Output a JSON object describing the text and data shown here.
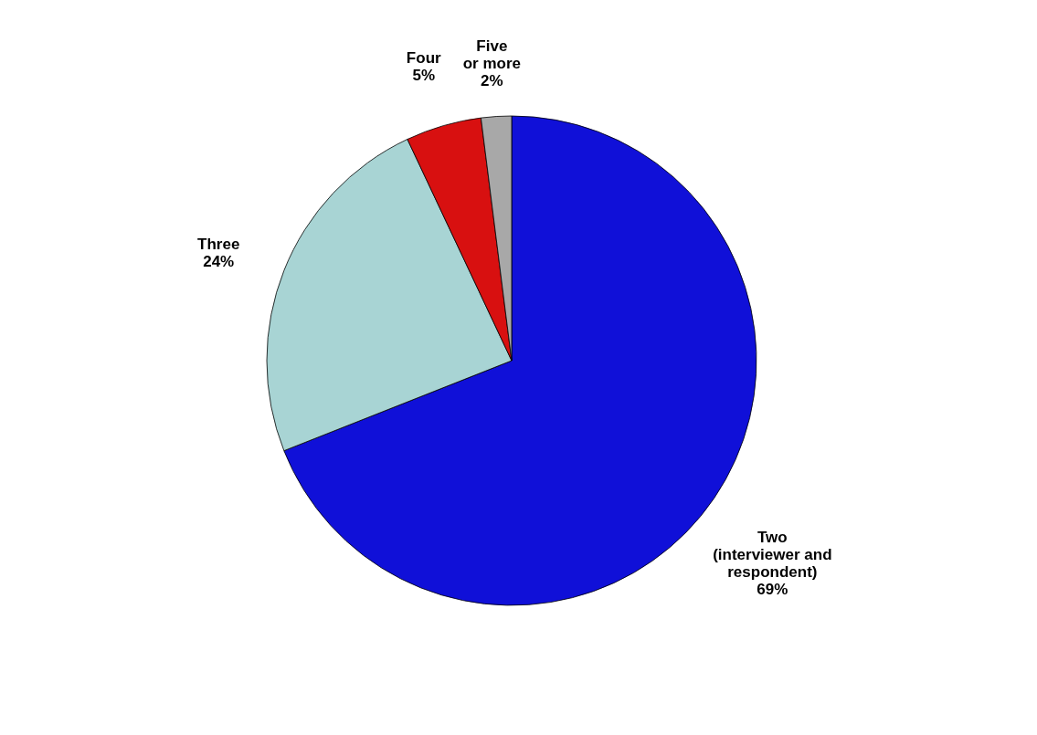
{
  "chart_data": {
    "type": "pie",
    "categories": [
      "Two\n(interviewer and\nrespondent)",
      "Three",
      "Four",
      "Five\nor more"
    ],
    "values": [
      69,
      24,
      5,
      2
    ],
    "value_labels": [
      "69%",
      "24%",
      "5%",
      "2%"
    ],
    "colors": [
      "#1010d8",
      "#a8d4d4",
      "#d81010",
      "#a8a8a8"
    ],
    "legend": false
  }
}
